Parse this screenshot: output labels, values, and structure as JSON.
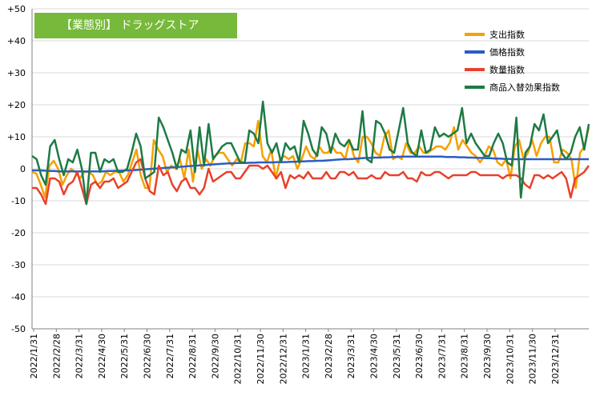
{
  "chart_data": {
    "type": "line",
    "title": "【業態別】 ドラッグストア",
    "ylim": [
      -50,
      50
    ],
    "yticks": [
      "+50",
      "+40",
      "+30",
      "+20",
      "+10",
      "0",
      "-10",
      "-20",
      "-30",
      "-40",
      "-50"
    ],
    "x_labels": [
      "2022/1/31",
      "2022/2/28",
      "2022/3/31",
      "2022/4/30",
      "2022/5/31",
      "2022/6/30",
      "2022/7/31",
      "2022/8/31",
      "2022/9/30",
      "2022/10/31",
      "2022/11/30",
      "2022/12/31",
      "2023/1/31",
      "2023/2/28",
      "2023/3/31",
      "2023/4/30",
      "2023/5/31",
      "2023/6/30",
      "2023/7/31",
      "2023/8/31",
      "2023/9/30",
      "2023/10/31",
      "2023/11/30",
      "2023/12/31"
    ],
    "series": [
      {
        "name": "支出指数",
        "color": "#f5a100",
        "values": [
          -1,
          -1.5,
          -5,
          -9,
          1,
          2.5,
          0,
          -5,
          -2,
          0,
          -1,
          -3,
          -1,
          -1,
          -2,
          -5,
          -4,
          -1,
          -2,
          -1,
          -1,
          -4,
          -2,
          2,
          6,
          -2,
          -6,
          -6,
          9,
          6,
          4,
          -1,
          1,
          0,
          3,
          -3,
          6,
          -4,
          6,
          0,
          3,
          1,
          4,
          5,
          5,
          3,
          1,
          3,
          2,
          8,
          8,
          7,
          15,
          4,
          2,
          6,
          -3,
          3,
          4,
          3,
          4,
          0,
          3,
          7,
          4,
          3,
          7,
          5,
          5,
          7,
          5,
          5,
          3,
          9,
          4,
          2,
          10,
          10,
          8,
          5,
          4,
          10,
          12,
          3,
          4,
          3,
          8,
          5,
          5,
          7,
          5,
          5,
          6,
          7,
          7,
          6,
          8,
          13,
          6,
          9,
          7,
          5,
          4,
          2,
          4,
          7,
          6,
          2,
          1,
          3,
          -3,
          7,
          9,
          3,
          5,
          9,
          4,
          8,
          10,
          10,
          2,
          2,
          6,
          5,
          3,
          -6,
          5,
          7,
          13
        ]
      },
      {
        "name": "価格指数",
        "color": "#2c5cc5",
        "values": [
          -0.5,
          -0.5,
          -0.5,
          -0.6,
          -0.7,
          -0.7,
          -0.8,
          -0.8,
          -0.8,
          -0.8,
          -0.8,
          -0.8,
          -0.8,
          -0.8,
          -0.8,
          -0.8,
          -0.8,
          -0.7,
          -0.7,
          -0.6,
          -0.6,
          -0.5,
          -0.5,
          -0.4,
          -0.3,
          -0.2,
          -0.1,
          0,
          0.1,
          0.2,
          0.3,
          0.4,
          0.5,
          0.6,
          0.7,
          0.8,
          0.9,
          1,
          1.1,
          1.2,
          1.3,
          1.4,
          1.5,
          1.6,
          1.7,
          1.7,
          1.8,
          1.8,
          1.8,
          1.9,
          1.9,
          2,
          2,
          2,
          2,
          2.1,
          2.1,
          2.1,
          2.2,
          2.2,
          2.3,
          2.3,
          2.4,
          2.4,
          2.5,
          2.5,
          2.6,
          2.7,
          2.8,
          2.9,
          3,
          3,
          3.1,
          3.2,
          3.3,
          3.4,
          3.4,
          3.5,
          3.5,
          3.6,
          3.6,
          3.7,
          3.7,
          3.8,
          3.8,
          3.8,
          3.8,
          3.8,
          3.8,
          3.8,
          3.8,
          3.8,
          3.8,
          3.7,
          3.7,
          3.7,
          3.6,
          3.6,
          3.5,
          3.5,
          3.4,
          3.4,
          3.3,
          3.3,
          3.2,
          3.2,
          3.1,
          3.1,
          3,
          3,
          3,
          3,
          3,
          3,
          3,
          3,
          3,
          3,
          3,
          3,
          3,
          3,
          3,
          3,
          3,
          3
        ]
      },
      {
        "name": "数量指数",
        "color": "#e8412c",
        "values": [
          -6,
          -6,
          -8,
          -11,
          -3,
          -3,
          -4,
          -8,
          -5,
          -4,
          -1,
          -6,
          -11,
          -5,
          -4,
          -6,
          -4,
          -4,
          -3,
          -6,
          -5,
          -4,
          -1,
          2,
          3,
          -3,
          -7,
          -8,
          1,
          -2,
          -1,
          -5,
          -7,
          -4,
          -3,
          -6,
          -6,
          -8,
          -6,
          0,
          -4,
          -3,
          -2,
          -1,
          -1,
          -3,
          -3,
          -1,
          1,
          1,
          1,
          0,
          1,
          -1,
          -3,
          -1,
          -6,
          -2,
          -3,
          -2,
          -3,
          -1,
          -3,
          -3,
          -3,
          -1,
          -3,
          -3,
          -1,
          -1,
          -2,
          -1,
          -3,
          -3,
          -3,
          -2,
          -3,
          -3,
          -1,
          -2,
          -2,
          -2,
          -1,
          -3,
          -3,
          -4,
          -1,
          -2,
          -2,
          -1,
          -1,
          -2,
          -3,
          -2,
          -2,
          -2,
          -2,
          -1,
          -1,
          -2,
          -2,
          -2,
          -2,
          -2,
          -3,
          -2,
          -2,
          -2,
          -3,
          -5,
          -6,
          -2,
          -2,
          -3,
          -2,
          -3,
          -2,
          -1,
          -3,
          -9,
          -3,
          -2,
          -1,
          1
        ]
      },
      {
        "name": "商品入替効果指数",
        "color": "#1e7a46",
        "values": [
          4,
          3,
          -2,
          -5,
          7,
          9,
          3,
          -2,
          3,
          2,
          6,
          0,
          -11,
          5,
          5,
          -1,
          3,
          2,
          3,
          -1,
          -1,
          0,
          5,
          11,
          7,
          -3,
          -2,
          -1,
          16,
          13,
          9,
          5,
          0,
          6,
          5,
          12,
          -1,
          13,
          1,
          14,
          3,
          5,
          7,
          8,
          8,
          5,
          2,
          2,
          12,
          11,
          8,
          21,
          8,
          5,
          8,
          2,
          8,
          6,
          7,
          2,
          15,
          11,
          6,
          4,
          13,
          11,
          5,
          11,
          8,
          7,
          9,
          6,
          6,
          18,
          3,
          2,
          15,
          14,
          11,
          6,
          5,
          12,
          19,
          8,
          5,
          4,
          12,
          5,
          6,
          13,
          10,
          11,
          10,
          11,
          12,
          19,
          8,
          11,
          8,
          6,
          4,
          4,
          8,
          11,
          8,
          2,
          1,
          16,
          -9,
          5,
          7,
          14,
          12,
          17,
          8,
          10,
          12,
          5,
          3,
          5,
          10,
          13,
          6,
          14
        ]
      }
    ],
    "legend_position": "top-right",
    "grid": true
  }
}
